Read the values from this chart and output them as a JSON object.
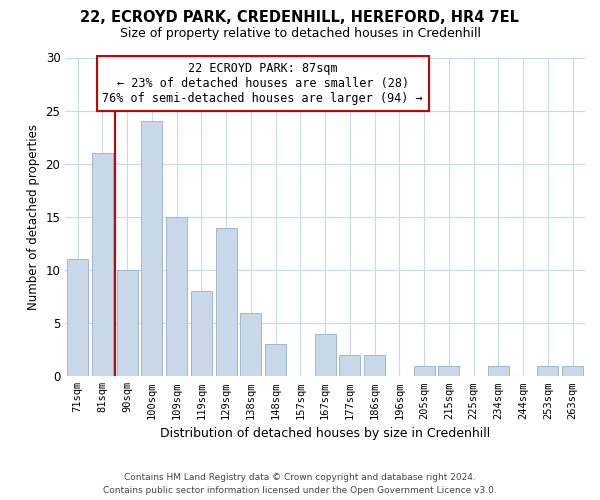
{
  "title1": "22, ECROYD PARK, CREDENHILL, HEREFORD, HR4 7EL",
  "title2": "Size of property relative to detached houses in Credenhill",
  "xlabel": "Distribution of detached houses by size in Credenhill",
  "ylabel": "Number of detached properties",
  "categories": [
    "71sqm",
    "81sqm",
    "90sqm",
    "100sqm",
    "109sqm",
    "119sqm",
    "129sqm",
    "138sqm",
    "148sqm",
    "157sqm",
    "167sqm",
    "177sqm",
    "186sqm",
    "196sqm",
    "205sqm",
    "215sqm",
    "225sqm",
    "234sqm",
    "244sqm",
    "253sqm",
    "263sqm"
  ],
  "values": [
    11,
    21,
    10,
    24,
    15,
    8,
    14,
    6,
    3,
    0,
    4,
    2,
    2,
    0,
    1,
    1,
    0,
    1,
    0,
    1,
    1
  ],
  "bar_color": "#c8d8e8",
  "bar_edge_color": "#a0b8cc",
  "vline_index": 2,
  "vline_color": "#cc0000",
  "annotation_line1": "22 ECROYD PARK: 87sqm",
  "annotation_line2": "← 23% of detached houses are smaller (28)",
  "annotation_line3": "76% of semi-detached houses are larger (94) →",
  "annotation_box_color": "#ffffff",
  "annotation_box_edge": "#cc0000",
  "ylim": [
    0,
    30
  ],
  "yticks": [
    0,
    5,
    10,
    15,
    20,
    25,
    30
  ],
  "footer1": "Contains HM Land Registry data © Crown copyright and database right 2024.",
  "footer2": "Contains public sector information licensed under the Open Government Licence v3.0.",
  "background_color": "#ffffff",
  "grid_color": "#c8d8e8"
}
